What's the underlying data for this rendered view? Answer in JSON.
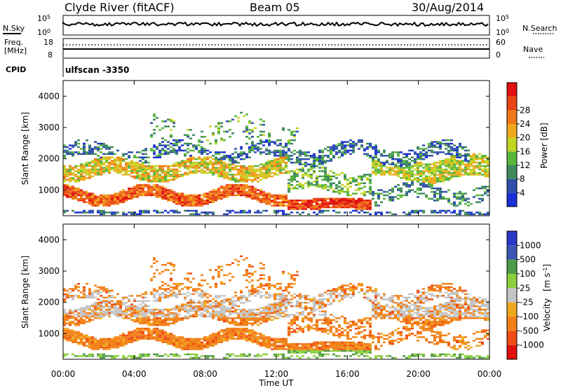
{
  "header": {
    "station": "Clyde River (fitACF)",
    "beam": "Beam 05",
    "date": "30/Aug/2014"
  },
  "top_panels": {
    "nsky_label": "N.Sky",
    "nsearch_label": "N.Search",
    "log_ticks": {
      "high_base": "10",
      "high_exp": "5",
      "low_base": "10",
      "low_exp": "0"
    },
    "freq_label": "Freq.",
    "freq_unit": "[MHz]",
    "freq_ticks": [
      "18",
      "8"
    ],
    "nave_label": "Nave",
    "nave_ticks": [
      "60",
      "0"
    ],
    "cpid_label": "CPID",
    "cpid_value": "ulfscan -3350"
  },
  "colors": {
    "power": [
      "#1a2fd6",
      "#2d4fa8",
      "#3f8a5a",
      "#58b63c",
      "#c2d424",
      "#f0a81c",
      "#f07818",
      "#ea4416",
      "#e01010"
    ],
    "velocity": [
      "#e01010",
      "#f04c14",
      "#f28018",
      "#f0a820",
      "#c4c4c4",
      "#8ccf3c",
      "#4f9a48",
      "#3a56b2",
      "#2a38c8"
    ],
    "ground_scatter": "#c4c4c4"
  },
  "chart_data": [
    {
      "type": "heatmap",
      "name": "power",
      "ylabel": "Slant Range [km]",
      "yticks": [
        "1000",
        "2000",
        "3000",
        "4000"
      ],
      "ylim": [
        180,
        4500
      ],
      "colorbar": {
        "label": "Power [dB]",
        "ticks": [
          "4",
          "8",
          "12",
          "16",
          "20",
          "24",
          "28"
        ],
        "range": [
          0,
          32
        ]
      }
    },
    {
      "type": "heatmap",
      "name": "velocity",
      "ylabel": "Slant Range [km]",
      "yticks": [
        "1000",
        "2000",
        "3000",
        "4000"
      ],
      "ylim": [
        180,
        4500
      ],
      "colorbar": {
        "label_main": "Velocity",
        "label_unit_base": "[m s",
        "label_unit_exp": "-1",
        "label_unit_close": "]",
        "ticks": [
          "1000",
          "500",
          "100",
          "25",
          "-25",
          "-100",
          "-500",
          "-1000"
        ]
      }
    }
  ],
  "time_axis": {
    "label": "Time UT",
    "ticks": [
      "00:00",
      "04:00",
      "08:00",
      "12:00",
      "16:00",
      "20:00",
      "00:00"
    ]
  }
}
